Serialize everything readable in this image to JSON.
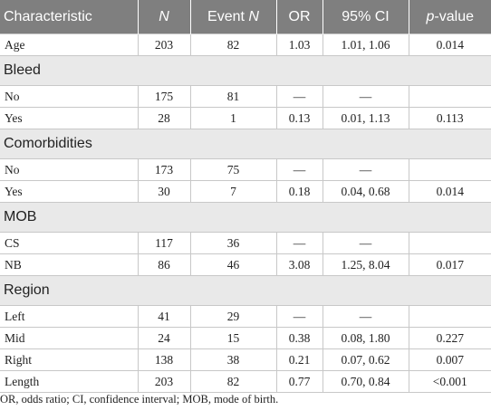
{
  "table": {
    "headers": {
      "characteristic": "Characteristic",
      "n": "N",
      "event_n_prefix": "Event ",
      "event_n_suffix": "N",
      "or": "OR",
      "ci": "95% CI",
      "p_prefix": "p",
      "p_suffix": "-value"
    },
    "rows": [
      {
        "kind": "data",
        "cells": [
          "Age",
          "203",
          "82",
          "1.03",
          "1.01, 1.06",
          "0.014"
        ]
      },
      {
        "kind": "group",
        "label": "Bleed"
      },
      {
        "kind": "data",
        "cells": [
          "No",
          "175",
          "81",
          "—",
          "—",
          ""
        ]
      },
      {
        "kind": "data",
        "cells": [
          "Yes",
          "28",
          "1",
          "0.13",
          "0.01, 1.13",
          "0.113"
        ]
      },
      {
        "kind": "group",
        "label": "Comorbidities"
      },
      {
        "kind": "data",
        "cells": [
          "No",
          "173",
          "75",
          "—",
          "—",
          ""
        ]
      },
      {
        "kind": "data",
        "cells": [
          "Yes",
          "30",
          "7",
          "0.18",
          "0.04, 0.68",
          "0.014"
        ]
      },
      {
        "kind": "group",
        "label": "MOB"
      },
      {
        "kind": "data",
        "cells": [
          "CS",
          "117",
          "36",
          "—",
          "—",
          ""
        ]
      },
      {
        "kind": "data",
        "cells": [
          "NB",
          "86",
          "46",
          "3.08",
          "1.25, 8.04",
          "0.017"
        ]
      },
      {
        "kind": "group",
        "label": "Region"
      },
      {
        "kind": "data",
        "cells": [
          "Left",
          "41",
          "29",
          "—",
          "—",
          ""
        ]
      },
      {
        "kind": "data",
        "cells": [
          "Mid",
          "24",
          "15",
          "0.38",
          "0.08, 1.80",
          "0.227"
        ]
      },
      {
        "kind": "data",
        "cells": [
          "Right",
          "138",
          "38",
          "0.21",
          "0.07, 0.62",
          "0.007"
        ]
      },
      {
        "kind": "data",
        "cells": [
          "Length",
          "203",
          "82",
          "0.77",
          "0.70, 0.84",
          "<0.001"
        ]
      }
    ]
  },
  "footnote": "OR, odds ratio; CI, confidence interval; MOB, mode of birth.",
  "colors": {
    "header_bg": "#7f7f7f",
    "group_bg": "#e9e9e9",
    "rule": "#c8c8c8"
  }
}
